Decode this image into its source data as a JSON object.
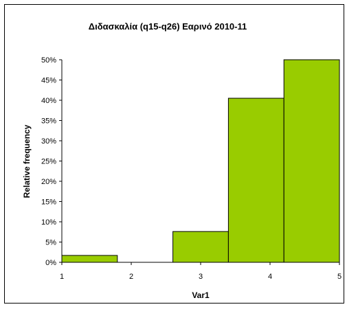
{
  "chart_data": {
    "type": "bar",
    "title": "Διδασκαλία (q15-q26) Εαρινό 2010-11",
    "xlabel": "Var1",
    "ylabel": "Relative frequency",
    "xlim": [
      1,
      5
    ],
    "ylim": [
      0,
      0.5
    ],
    "x_ticks": [
      "1",
      "2",
      "3",
      "4",
      "5"
    ],
    "y_ticks": [
      "0%",
      "5%",
      "10%",
      "15%",
      "20%",
      "25%",
      "30%",
      "35%",
      "40%",
      "45%",
      "50%"
    ],
    "bins": [
      {
        "from": 1.0,
        "to": 1.8,
        "value": 0.017
      },
      {
        "from": 1.8,
        "to": 2.6,
        "value": 0.0
      },
      {
        "from": 2.6,
        "to": 3.4,
        "value": 0.076
      },
      {
        "from": 3.4,
        "to": 4.2,
        "value": 0.405
      },
      {
        "from": 4.2,
        "to": 5.0,
        "value": 0.5
      }
    ],
    "bar_color": "#99cc00",
    "grid": false,
    "legend": "none"
  }
}
